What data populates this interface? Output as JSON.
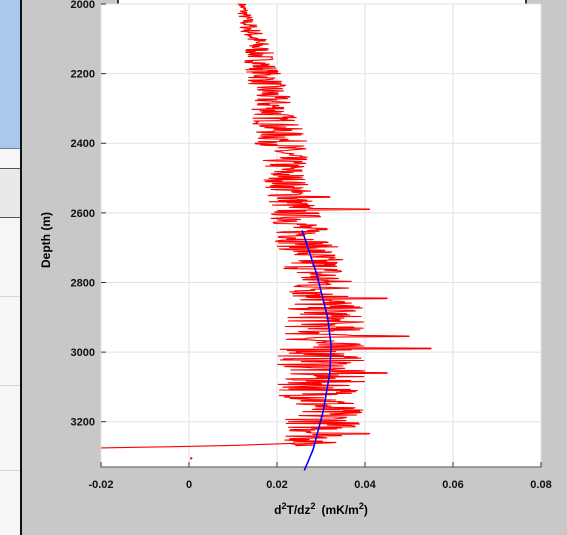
{
  "chart_data": {
    "type": "line",
    "xlabel_main": "d",
    "xlabel_sup1": "2",
    "xlabel_mid": "T/dz",
    "xlabel_sup2": "2",
    "xlabel_units": "(mK/m",
    "xlabel_sup3": "2",
    "xlabel_close": ")",
    "ylabel": "Depth (m)",
    "xlim": [
      -0.02,
      0.08
    ],
    "ylim": [
      3330,
      2000
    ],
    "y_inverted": true,
    "grid": true,
    "x_ticks": [
      {
        "value": -0.02,
        "label": "-0.02"
      },
      {
        "value": 0,
        "label": "0"
      },
      {
        "value": 0.02,
        "label": "0.02"
      },
      {
        "value": 0.04,
        "label": "0.04"
      },
      {
        "value": 0.06,
        "label": "0.06"
      },
      {
        "value": 0.08,
        "label": "0.08"
      }
    ],
    "y_ticks": [
      {
        "value": 2000,
        "label": "2000"
      },
      {
        "value": 2200,
        "label": "2200"
      },
      {
        "value": 2400,
        "label": "2400"
      },
      {
        "value": 2600,
        "label": "2600"
      },
      {
        "value": 2800,
        "label": "2800"
      },
      {
        "value": 3000,
        "label": "3000"
      },
      {
        "value": 3200,
        "label": "3200"
      }
    ],
    "series": [
      {
        "color": "#ff0000",
        "style": "noisy measured profile (center line with local oscillation amplitude)",
        "points": [
          {
            "depth": 2000,
            "center": 0.012,
            "amp": 0.001
          },
          {
            "depth": 2050,
            "center": 0.013,
            "amp": 0.002
          },
          {
            "depth": 2100,
            "center": 0.015,
            "amp": 0.003
          },
          {
            "depth": 2200,
            "center": 0.017,
            "amp": 0.004
          },
          {
            "depth": 2300,
            "center": 0.019,
            "amp": 0.005
          },
          {
            "depth": 2400,
            "center": 0.021,
            "amp": 0.006
          },
          {
            "depth": 2500,
            "center": 0.022,
            "amp": 0.005
          },
          {
            "depth": 2600,
            "center": 0.024,
            "amp": 0.006
          },
          {
            "depth": 2700,
            "center": 0.027,
            "amp": 0.007
          },
          {
            "depth": 2800,
            "center": 0.03,
            "amp": 0.008
          },
          {
            "depth": 2900,
            "center": 0.031,
            "amp": 0.009
          },
          {
            "depth": 3000,
            "center": 0.03,
            "amp": 0.01
          },
          {
            "depth": 3100,
            "center": 0.03,
            "amp": 0.01
          },
          {
            "depth": 3200,
            "center": 0.031,
            "amp": 0.009
          },
          {
            "depth": 3250,
            "center": 0.029,
            "amp": 0.008
          },
          {
            "depth": 3270,
            "center": 0.026,
            "amp": 0.004
          }
        ],
        "spikes": [
          {
            "depth": 2590,
            "from": 0.02,
            "to": 0.041
          },
          {
            "depth": 2555,
            "from": 0.016,
            "to": 0.032
          },
          {
            "depth": 2845,
            "from": 0.032,
            "to": 0.045
          },
          {
            "depth": 2955,
            "from": 0.034,
            "to": 0.05
          },
          {
            "depth": 2990,
            "from": 0.032,
            "to": 0.055
          },
          {
            "depth": 3060,
            "from": 0.032,
            "to": 0.045
          },
          {
            "depth": 3235,
            "from": 0.028,
            "to": 0.041
          }
        ],
        "tail": [
          {
            "x": 0.024,
            "depth": 3262
          },
          {
            "x": 0.01,
            "depth": 3268
          },
          {
            "x": -0.005,
            "depth": 3272
          },
          {
            "x": -0.02,
            "depth": 3275
          }
        ],
        "dot": {
          "x": 0.0005,
          "depth": 3305
        }
      },
      {
        "color": "#0000ff",
        "style": "smooth parabolic fit",
        "points": [
          {
            "x": 0.0257,
            "depth": 2650
          },
          {
            "x": 0.029,
            "depth": 2775
          },
          {
            "x": 0.0315,
            "depth": 2900
          },
          {
            "x": 0.0323,
            "depth": 2980
          },
          {
            "x": 0.032,
            "depth": 3060
          },
          {
            "x": 0.0305,
            "depth": 3170
          },
          {
            "x": 0.0282,
            "depth": 3280
          },
          {
            "x": 0.0262,
            "depth": 3340
          }
        ]
      }
    ]
  }
}
